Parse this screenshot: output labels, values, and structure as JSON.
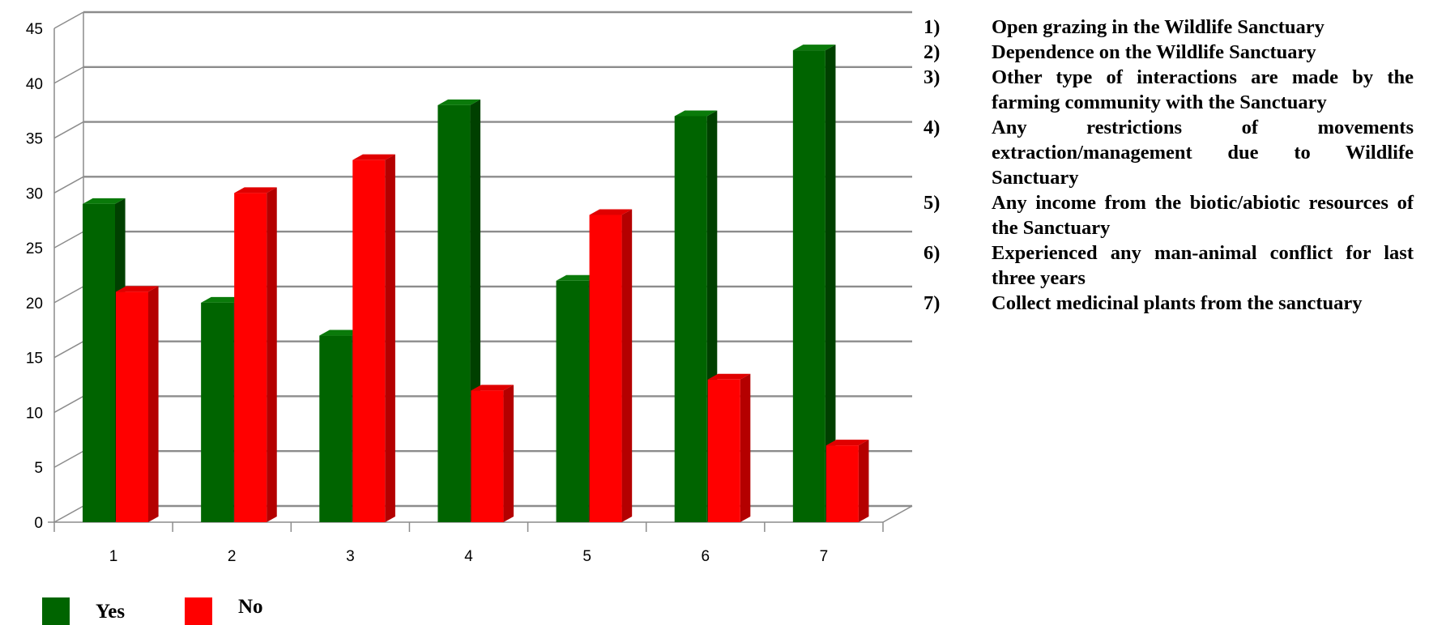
{
  "chart_data": {
    "type": "bar",
    "categories": [
      "1",
      "2",
      "3",
      "4",
      "5",
      "6",
      "7"
    ],
    "series": [
      {
        "name": "Yes",
        "values": [
          29,
          20,
          17,
          38,
          22,
          37,
          43
        ],
        "color": "#006400"
      },
      {
        "name": "No",
        "values": [
          21,
          30,
          33,
          12,
          28,
          13,
          7
        ],
        "color": "#ff0000"
      }
    ],
    "yticks": [
      "0",
      "5",
      "10",
      "15",
      "20",
      "25",
      "30",
      "35",
      "40",
      "45"
    ],
    "ylim": [
      0,
      45
    ],
    "grid": true,
    "style": "3d-column",
    "legend_position": "bottom-left"
  },
  "notes": [
    {
      "num": "1)",
      "text": "Open grazing in the Wildlife Sanctuary"
    },
    {
      "num": "2)",
      "text": "Dependence on the Wildlife Sanctuary"
    },
    {
      "num": "3)",
      "text": "Other type of interactions are made by the farming community with the Sanctuary"
    },
    {
      "num": "4)",
      "text": "Any restrictions of movements extraction/management due to Wildlife Sanctuary"
    },
    {
      "num": "5)",
      "text": "Any income from the biotic/abiotic resources of the Sanctuary"
    },
    {
      "num": "6)",
      "text": "Experienced any man-animal conflict for last three years"
    },
    {
      "num": "7)",
      "text": "Collect medicinal plants from the sanctuary"
    }
  ],
  "legend": [
    {
      "label": "Yes",
      "color": "#006400"
    },
    {
      "label": "No",
      "color": "#ff0000"
    }
  ]
}
